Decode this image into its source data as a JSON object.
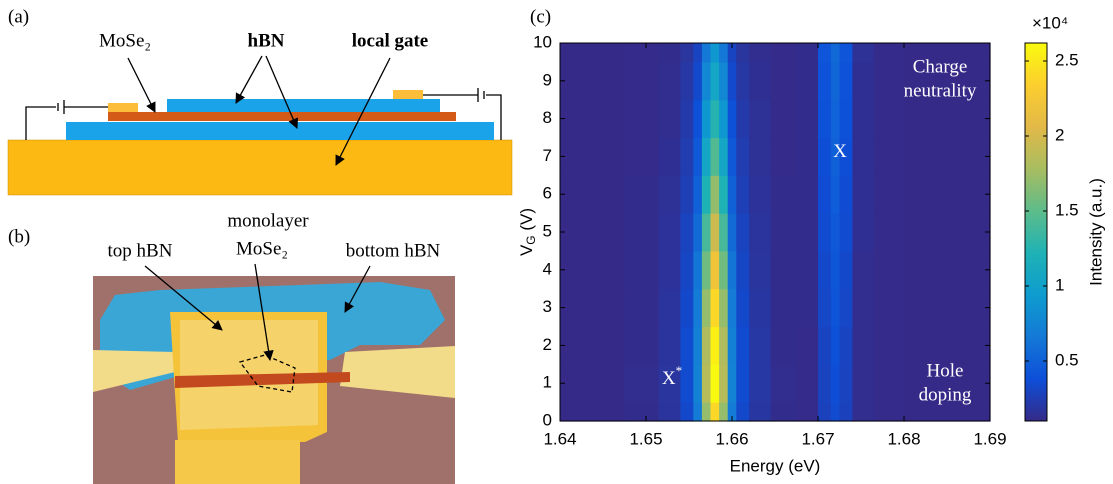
{
  "panels": {
    "a": {
      "label": "(a)",
      "texts": [
        "MoSe₂",
        "hBN",
        "local gate"
      ]
    },
    "b": {
      "label": "(b)",
      "texts": [
        "top hBN",
        "monolayer",
        "MoSe₂",
        "bottom hBN"
      ]
    }
  },
  "chart_data": {
    "type": "heatmap",
    "panel_label": "(c)",
    "x_label": "Energy (eV)",
    "y_label": [
      "V",
      "G",
      " (V)"
    ],
    "x": [
      1.64,
      1.645,
      1.65,
      1.653,
      1.655,
      1.656,
      1.657,
      1.658,
      1.659,
      1.66,
      1.661,
      1.663,
      1.666,
      1.669,
      1.671,
      1.672,
      1.673,
      1.675,
      1.678,
      1.682,
      1.686,
      1.69
    ],
    "y": [
      0,
      1,
      2,
      3,
      4,
      5,
      6,
      7,
      8,
      9,
      10
    ],
    "z": [
      [
        0.1,
        0.1,
        0.12,
        0.17,
        0.33,
        0.68,
        1.71,
        2.4,
        1.71,
        0.68,
        0.33,
        0.19,
        0.12,
        0.11,
        0.28,
        0.35,
        0.28,
        0.13,
        0.11,
        0.1,
        0.1,
        0.1
      ],
      [
        0.1,
        0.1,
        0.13,
        0.18,
        0.35,
        0.73,
        1.85,
        2.6,
        1.85,
        0.73,
        0.35,
        0.2,
        0.13,
        0.11,
        0.29,
        0.37,
        0.29,
        0.13,
        0.11,
        0.1,
        0.1,
        0.1
      ],
      [
        0.1,
        0.1,
        0.12,
        0.17,
        0.35,
        0.71,
        1.82,
        2.55,
        1.82,
        0.71,
        0.35,
        0.2,
        0.12,
        0.11,
        0.3,
        0.39,
        0.3,
        0.13,
        0.11,
        0.1,
        0.1,
        0.1
      ],
      [
        0.1,
        0.1,
        0.12,
        0.17,
        0.33,
        0.68,
        1.71,
        2.4,
        1.71,
        0.68,
        0.33,
        0.19,
        0.12,
        0.12,
        0.32,
        0.41,
        0.32,
        0.13,
        0.11,
        0.1,
        0.1,
        0.1
      ],
      [
        0.1,
        0.1,
        0.12,
        0.16,
        0.31,
        0.63,
        1.57,
        2.2,
        1.57,
        0.63,
        0.31,
        0.18,
        0.12,
        0.12,
        0.33,
        0.43,
        0.33,
        0.13,
        0.11,
        0.1,
        0.1,
        0.1
      ],
      [
        0.1,
        0.1,
        0.12,
        0.16,
        0.29,
        0.56,
        1.4,
        1.95,
        1.4,
        0.56,
        0.29,
        0.17,
        0.12,
        0.12,
        0.35,
        0.45,
        0.35,
        0.14,
        0.11,
        0.1,
        0.1,
        0.1
      ],
      [
        0.1,
        0.1,
        0.12,
        0.15,
        0.26,
        0.5,
        1.22,
        1.7,
        1.22,
        0.5,
        0.26,
        0.16,
        0.12,
        0.12,
        0.36,
        0.47,
        0.36,
        0.14,
        0.11,
        0.1,
        0.1,
        0.1
      ],
      [
        0.1,
        0.1,
        0.11,
        0.14,
        0.24,
        0.44,
        1.05,
        1.45,
        1.05,
        0.44,
        0.24,
        0.15,
        0.11,
        0.12,
        0.37,
        0.49,
        0.37,
        0.14,
        0.11,
        0.1,
        0.1,
        0.1
      ],
      [
        0.1,
        0.1,
        0.11,
        0.13,
        0.22,
        0.39,
        0.91,
        1.25,
        0.91,
        0.39,
        0.22,
        0.15,
        0.11,
        0.12,
        0.39,
        0.51,
        0.39,
        0.14,
        0.11,
        0.1,
        0.1,
        0.1
      ],
      [
        0.1,
        0.1,
        0.11,
        0.13,
        0.2,
        0.34,
        0.77,
        1.05,
        0.77,
        0.34,
        0.2,
        0.14,
        0.11,
        0.12,
        0.4,
        0.53,
        0.4,
        0.14,
        0.11,
        0.1,
        0.1,
        0.1
      ],
      [
        0.1,
        0.1,
        0.11,
        0.12,
        0.18,
        0.3,
        0.66,
        0.9,
        0.66,
        0.3,
        0.18,
        0.13,
        0.11,
        0.12,
        0.42,
        0.55,
        0.42,
        0.15,
        0.11,
        0.1,
        0.1,
        0.1
      ]
    ],
    "xlim": [
      1.64,
      1.69
    ],
    "ylim": [
      0,
      10
    ],
    "xticks": [
      1.64,
      1.65,
      1.66,
      1.67,
      1.68,
      1.69
    ],
    "yticks": [
      0,
      1,
      2,
      3,
      4,
      5,
      6,
      7,
      8,
      9,
      10
    ],
    "colorbar": {
      "label": "Intensity (a.u.)",
      "multiplier": "×10⁴",
      "clim": [
        0.1,
        2.62
      ],
      "ticks": [
        0.5,
        1,
        1.5,
        2,
        2.5
      ],
      "colormap": [
        "#352a87",
        "#0d4fd9",
        "#1479d6",
        "#0e9ccf",
        "#1fb2b5",
        "#5dbc8a",
        "#a8bd60",
        "#e2b948",
        "#fcce2e",
        "#f9fb0e"
      ]
    },
    "annotations": [
      {
        "lines": [
          "Charge",
          "neutrality"
        ]
      },
      {
        "text": "X"
      },
      {
        "text": "X",
        "sup": "*"
      },
      {
        "lines": [
          "Hole",
          "doping"
        ]
      }
    ]
  }
}
